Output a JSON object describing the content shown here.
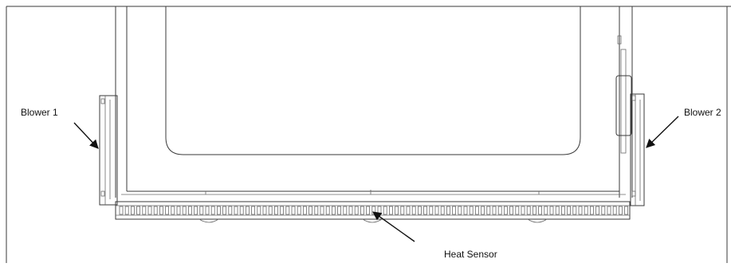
{
  "labels": {
    "blower_left": "Blower 1",
    "blower_right": "Blower 2",
    "heat_sensor": "Heat Sensor"
  },
  "colors": {
    "line": "#3a3a3a",
    "text": "#111111",
    "background": "#ffffff"
  }
}
